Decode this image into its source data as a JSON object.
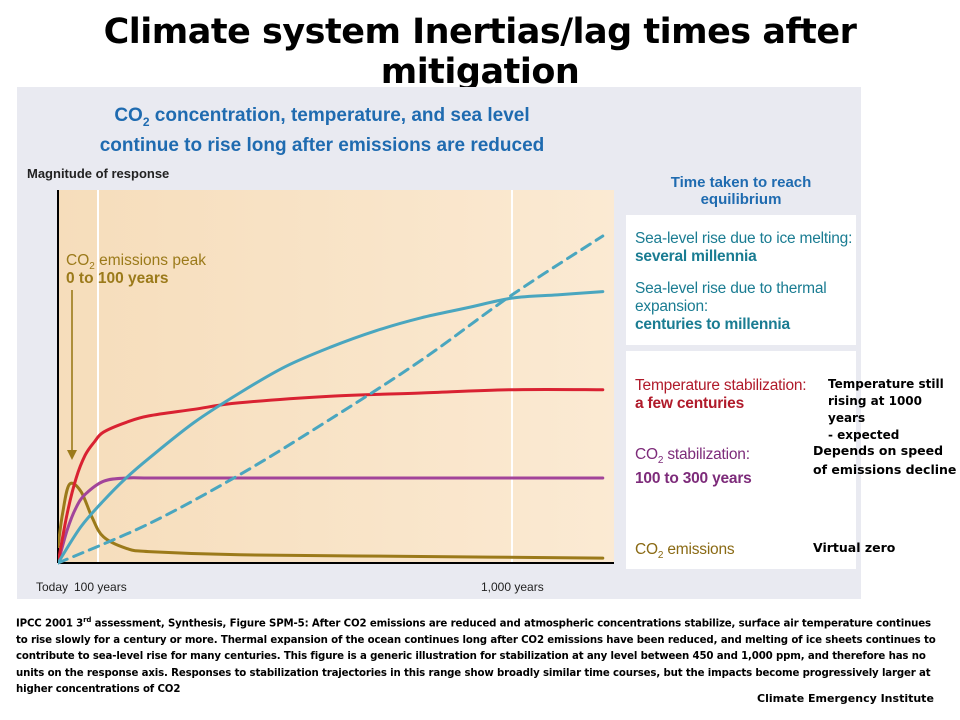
{
  "title": "Climate system Inertias/lag times after mitigation",
  "figure": {
    "heading_line1_a": "CO",
    "heading_line1_sub": "2",
    "heading_line1_b": " concentration, temperature, and sea level",
    "heading_line2": "continue to rise long after emissions are reduced",
    "ylabel": "Magnitude of response",
    "peak_annotation": {
      "line1_a": "CO",
      "line1_sub": "2",
      "line1_b": " emissions peak",
      "line2": "0 to 100 years"
    },
    "equilibrium_heading_line1": "Time taken to reach",
    "equilibrium_heading_line2": "equilibrium",
    "labels": {
      "ice": {
        "line1": "Sea-level rise due to ice melting:",
        "line2": "several millennia"
      },
      "thermal": {
        "line1": "Sea-level rise due to thermal",
        "line2": "expansion:",
        "line3": "centuries to millennia"
      },
      "temperature": {
        "line1": "Temperature stabilization:",
        "line2": "a few centuries"
      },
      "co2_stab": {
        "line1_a": "CO",
        "line1_sub": "2",
        "line1_b": " stabilization:",
        "line2": "100 to 300 years"
      },
      "co2_emis": {
        "a": "CO",
        "sub": "2",
        "b": " emissions"
      }
    }
  },
  "side_notes": {
    "temperature": [
      "Temperature still",
      "rising at 1000 years",
      "- expected"
    ],
    "co2_stab": [
      "Depends on speed",
      "of emissions decline"
    ],
    "emissions": [
      "Virtual zero"
    ]
  },
  "caption": {
    "part1": "IPCC 2001 3",
    "sup": "rd",
    "part2": " assessment, Synthesis, Figure SPM-5: After CO2  emissions are reduced and atmospheric concentrations stabilize, surface air temperature continues to rise slowly for a century or more. Thermal expansion of the ocean continues long after CO2   emissions have been reduced, and melting of ice sheets continues to contribute to sea-level rise for many centuries. This figure is  a generic illustration for stabilization at any level between 450 and 1,000 ppm, and therefore has no units on the response axis. Responses to stabilization trajectories in this range show broadly similar time courses, but the impacts become progressively larger at higher concentrations of CO2"
  },
  "credit": "Climate Emergency Institute",
  "colors": {
    "ice_melting": "#4aa6bf",
    "thermal_expansion": "#4aa6bf",
    "temperature": "#d92232",
    "co2_stabilization": "#a2449a",
    "co2_emissions": "#9b7a1a",
    "heading": "#1f6bb0"
  },
  "chart_data": {
    "type": "line",
    "title": "CO2 concentration, temperature, and sea level continue to rise long after emissions are reduced",
    "ylabel": "Magnitude of response",
    "xlabel": "",
    "x_ticks": [
      {
        "x": 0,
        "label": "Today"
      },
      {
        "x": 100,
        "label": "100 years"
      },
      {
        "x": 1000,
        "label": "1,000 years"
      }
    ],
    "x_range": [
      0,
      1200
    ],
    "y_range": [
      0,
      1
    ],
    "y_units": "relative (no units on response axis)",
    "grid": false,
    "series": [
      {
        "name": "Sea-level rise due to ice melting",
        "dashed": true,
        "points": [
          [
            0,
            0
          ],
          [
            200,
            0.12
          ],
          [
            400,
            0.27
          ],
          [
            600,
            0.44
          ],
          [
            800,
            0.62
          ],
          [
            1000,
            0.82
          ],
          [
            1200,
            1.0
          ]
        ]
      },
      {
        "name": "Sea-level rise due to thermal expansion",
        "dashed": false,
        "points": [
          [
            0,
            0
          ],
          [
            50,
            0.11
          ],
          [
            100,
            0.19
          ],
          [
            150,
            0.26
          ],
          [
            200,
            0.32
          ],
          [
            300,
            0.43
          ],
          [
            400,
            0.52
          ],
          [
            500,
            0.6
          ],
          [
            600,
            0.66
          ],
          [
            700,
            0.71
          ],
          [
            800,
            0.75
          ],
          [
            900,
            0.78
          ],
          [
            1000,
            0.81
          ],
          [
            1100,
            0.82
          ],
          [
            1200,
            0.83
          ]
        ]
      },
      {
        "name": "Temperature stabilization",
        "dashed": false,
        "points": [
          [
            0,
            0
          ],
          [
            20,
            0.15
          ],
          [
            40,
            0.26
          ],
          [
            60,
            0.33
          ],
          [
            80,
            0.37
          ],
          [
            100,
            0.4
          ],
          [
            150,
            0.43
          ],
          [
            200,
            0.45
          ],
          [
            300,
            0.47
          ],
          [
            400,
            0.49
          ],
          [
            600,
            0.51
          ],
          [
            800,
            0.52
          ],
          [
            1000,
            0.53
          ],
          [
            1200,
            0.53
          ]
        ]
      },
      {
        "name": "CO2 stabilization",
        "dashed": false,
        "points": [
          [
            0,
            0
          ],
          [
            20,
            0.1
          ],
          [
            40,
            0.17
          ],
          [
            60,
            0.21
          ],
          [
            100,
            0.25
          ],
          [
            150,
            0.26
          ],
          [
            200,
            0.26
          ],
          [
            300,
            0.26
          ],
          [
            600,
            0.26
          ],
          [
            1000,
            0.26
          ],
          [
            1200,
            0.26
          ]
        ]
      },
      {
        "name": "CO2 emissions",
        "dashed": false,
        "points": [
          [
            0,
            0.05
          ],
          [
            10,
            0.15
          ],
          [
            25,
            0.24
          ],
          [
            50,
            0.22
          ],
          [
            75,
            0.14
          ],
          [
            100,
            0.08
          ],
          [
            150,
            0.045
          ],
          [
            200,
            0.035
          ],
          [
            400,
            0.025
          ],
          [
            800,
            0.02
          ],
          [
            1200,
            0.015
          ]
        ]
      }
    ]
  }
}
